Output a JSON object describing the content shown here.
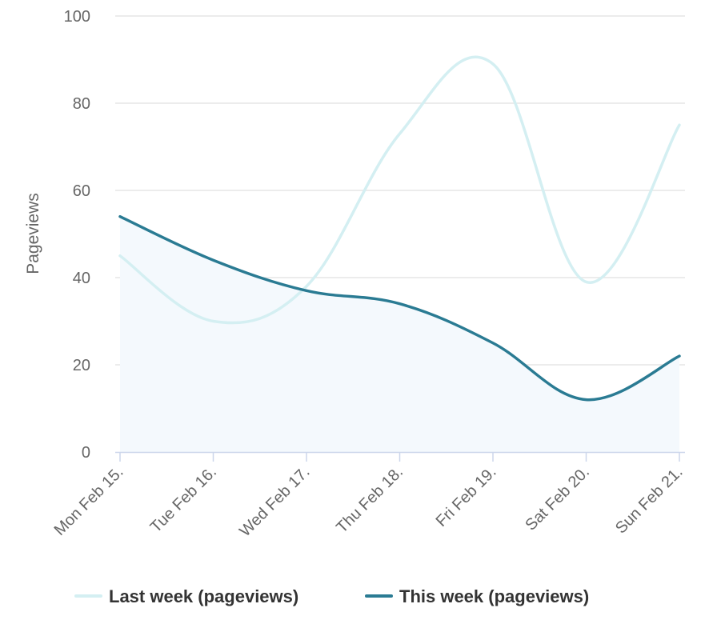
{
  "chart_data": {
    "type": "line",
    "title": "",
    "xlabel": "",
    "ylabel": "Pageviews",
    "ylim": [
      0,
      100
    ],
    "yticks": [
      0,
      20,
      40,
      60,
      80,
      100
    ],
    "grid": true,
    "legend_position": "bottom-center",
    "categories": [
      "Mon Feb 15.",
      "Tue Feb 16.",
      "Wed Feb 17.",
      "Thu Feb 18.",
      "Fri Feb 19.",
      "Sat Feb 20.",
      "Sun Feb 21."
    ],
    "series": [
      {
        "name": "Last week (pageviews)",
        "values": [
          45,
          30,
          38,
          73,
          89,
          39,
          75
        ],
        "color": "#d4eff2",
        "fill": false,
        "smooth": true
      },
      {
        "name": "This week (pageviews)",
        "values": [
          54,
          44,
          37,
          34,
          25,
          12,
          22
        ],
        "color": "#2a7b93",
        "fill": true,
        "fill_color": "#f4f9fd",
        "smooth": true
      }
    ]
  }
}
